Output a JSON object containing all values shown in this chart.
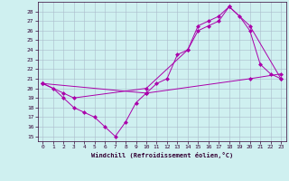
{
  "xlabel": "Windchill (Refroidissement éolien,°C)",
  "bg_color": "#cff0f0",
  "grid_color": "#aabbcc",
  "line_color": "#aa00aa",
  "xlim": [
    -0.5,
    23.5
  ],
  "ylim": [
    14.5,
    29
  ],
  "xticks": [
    0,
    1,
    2,
    3,
    4,
    5,
    6,
    7,
    8,
    9,
    10,
    11,
    12,
    13,
    14,
    15,
    16,
    17,
    18,
    19,
    20,
    21,
    22,
    23
  ],
  "yticks": [
    15,
    16,
    17,
    18,
    19,
    20,
    21,
    22,
    23,
    24,
    25,
    26,
    27,
    28
  ],
  "line1_x": [
    0,
    1,
    2,
    3,
    4,
    5,
    6,
    7,
    8,
    9,
    10,
    11,
    12,
    13,
    14,
    15,
    16,
    17,
    18,
    19,
    20,
    21,
    22,
    23
  ],
  "line1_y": [
    20.5,
    20.0,
    19.0,
    18.0,
    17.5,
    17.0,
    16.0,
    15.0,
    16.5,
    18.5,
    19.5,
    20.5,
    21.0,
    23.5,
    24.0,
    26.5,
    27.0,
    27.5,
    28.5,
    27.5,
    26.0,
    22.5,
    21.5,
    21.0
  ],
  "line2_x": [
    0,
    2,
    3,
    10,
    14,
    15,
    16,
    17,
    18,
    20,
    23
  ],
  "line2_y": [
    20.5,
    19.5,
    19.0,
    20.0,
    24.0,
    26.0,
    26.5,
    27.0,
    28.5,
    26.5,
    21.0
  ],
  "line3_x": [
    0,
    10,
    20,
    23
  ],
  "line3_y": [
    20.5,
    19.5,
    21.0,
    21.5
  ]
}
